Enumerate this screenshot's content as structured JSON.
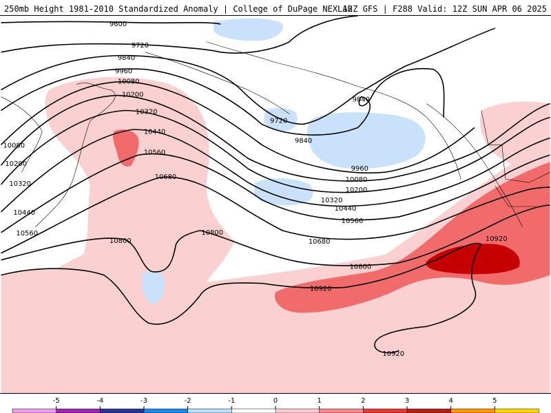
{
  "header": {
    "left": "250mb Height 1981-2010 Standardized Anomaly | College of DuPage NEXLAB",
    "right": "12Z GFS | F288 Valid: 12Z SUN APR 06 2025"
  },
  "contour_labels": [
    "9600",
    "9720",
    "9840",
    "9960",
    "10080",
    "10200",
    "10320",
    "10440",
    "10560",
    "10680",
    "10800",
    "10920"
  ],
  "colorbar": {
    "ticks": [
      "-5",
      "-4",
      "-3",
      "-2",
      "-1",
      "0",
      "1",
      "2",
      "3",
      "4",
      "5"
    ],
    "colors": [
      "#e8a0e8",
      "#9c27b0",
      "#283593",
      "#1e88e5",
      "#bbdefb",
      "#ffffff",
      "#ffcdd2",
      "#f48989",
      "#e53935",
      "#b71c1c",
      "#ff9800",
      "#ffd600"
    ]
  },
  "anomaly_colors": {
    "light_blue": "#c9e1fb",
    "light_red": "#fbd0d0",
    "medium_red": "#f26b6b",
    "dark_red": "#c40000"
  }
}
